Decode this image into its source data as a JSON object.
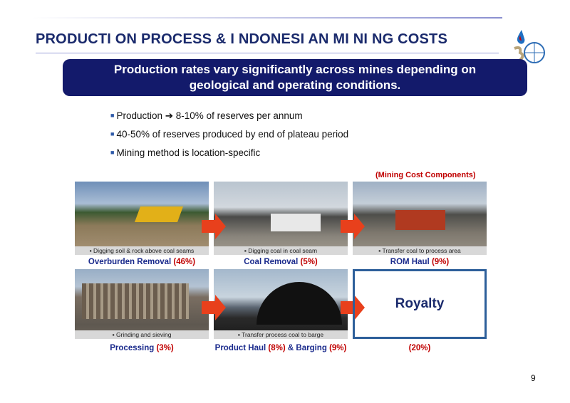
{
  "header": {
    "title": "PRODUCTI ON PROCESS & I NDONESI AN MI NI NG COSTS"
  },
  "banner": {
    "lines": [
      "Production rates vary significantly across mines depending on",
      "geological and operating conditions."
    ]
  },
  "bullets": [
    "Production ➔ 8-10% of reserves per annum",
    "40-50% of reserves produced by end of plateau period",
    "Mining method is location-specific"
  ],
  "section_label": "(Mining Cost Components)",
  "steps": [
    {
      "caption": "Digging soil & rock above coal seams",
      "name": "Overburden Removal",
      "share": "(46%)"
    },
    {
      "caption": "Digging coal in coal seam",
      "name": "Coal Removal",
      "share": "(5%)"
    },
    {
      "caption": "Transfer coal to process area",
      "name": "ROM Haul",
      "share": "(9%)"
    },
    {
      "caption": "Grinding and sieving",
      "name": "Processing",
      "share": "(3%)"
    },
    {
      "caption": "Transfer process coal to barge",
      "name": "Product Haul",
      "share": "(8%)",
      "name2": "& Barging",
      "share2": "(9%)"
    }
  ],
  "royalty": {
    "name": "Royalty",
    "share": "(20%)"
  },
  "page_number": "9"
}
